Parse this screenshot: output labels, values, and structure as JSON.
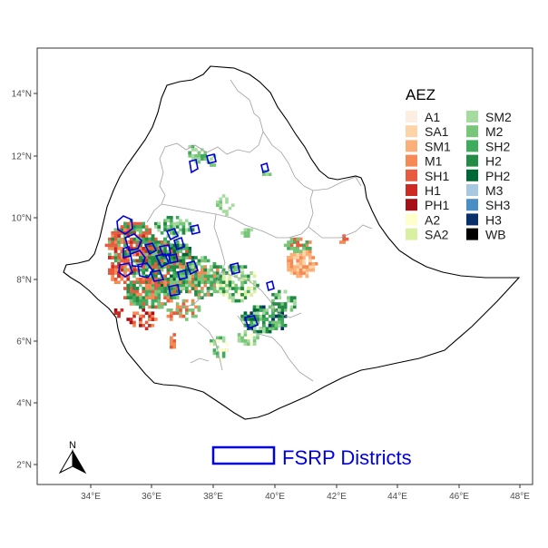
{
  "map": {
    "x_ticks": [
      "34°E",
      "36°E",
      "38°E",
      "40°E",
      "42°E",
      "44°E",
      "46°E",
      "48°E"
    ],
    "y_ticks": [
      "2°N",
      "4°N",
      "6°N",
      "8°N",
      "10°N",
      "12°N",
      "14°N"
    ],
    "north_label": "N",
    "outline_color": "#000000",
    "region_border_color": "#9e9e9e"
  },
  "legend": {
    "title": "AEZ",
    "items": [
      {
        "label": "A1",
        "color": "#fdeee2"
      },
      {
        "label": "SA1",
        "color": "#fdd4a8"
      },
      {
        "label": "SM1",
        "color": "#fbb07a"
      },
      {
        "label": "M1",
        "color": "#f58a55"
      },
      {
        "label": "SH1",
        "color": "#e85b3f"
      },
      {
        "label": "H1",
        "color": "#cc2a22"
      },
      {
        "label": "PH1",
        "color": "#a50f15"
      },
      {
        "label": "A2",
        "color": "#ffffcc"
      },
      {
        "label": "SA2",
        "color": "#d9f0a3"
      },
      {
        "label": "SM2",
        "color": "#a6dba0"
      },
      {
        "label": "M2",
        "color": "#78c679"
      },
      {
        "label": "SH2",
        "color": "#41ab5d"
      },
      {
        "label": "H2",
        "color": "#238b45"
      },
      {
        "label": "PH2",
        "color": "#006837"
      },
      {
        "label": "M3",
        "color": "#a6c8e0"
      },
      {
        "label": "SH3",
        "color": "#4a8fc4"
      },
      {
        "label": "H3",
        "color": "#08306b"
      },
      {
        "label": "WB",
        "color": "#000000"
      }
    ]
  },
  "fsrp": {
    "label": "FSRP Districts",
    "color": "#0000dd"
  }
}
